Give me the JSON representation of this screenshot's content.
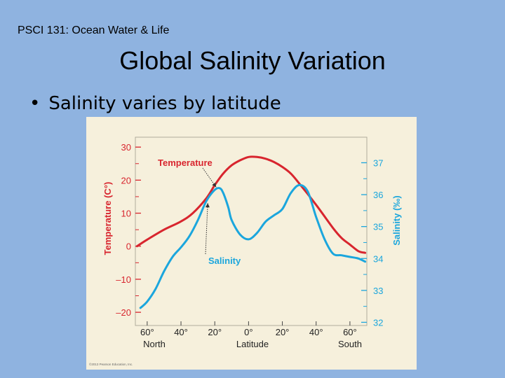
{
  "slide": {
    "course_label": "PSCI 131: Ocean Water & Life",
    "title": "Global Salinity Variation",
    "bullet_symbol": "•",
    "bullet": "Salinity varies by latitude"
  },
  "colors": {
    "slide_background": "#8fb3e0",
    "figure_background": "#f6f0dc",
    "temperature": "#d8252e",
    "salinity": "#1ba6dd",
    "text": "#222222"
  },
  "chart_data": {
    "type": "line",
    "xlabel": "Latitude",
    "x_ticks": [
      "60°",
      "40°",
      "20°",
      "0°",
      "20°",
      "40°",
      "60°"
    ],
    "x_tick_values": [
      -60,
      -40,
      -20,
      0,
      20,
      40,
      60
    ],
    "x_end_labels": {
      "left": "North",
      "right": "South"
    },
    "x_range": [
      -67,
      70
    ],
    "left_axis": {
      "label": "Temperature (C°)",
      "ticks": [
        "30",
        "20",
        "10",
        "0",
        "–10",
        "–20"
      ],
      "tick_values": [
        30,
        20,
        10,
        0,
        -10,
        -20
      ],
      "range": [
        -24,
        33
      ]
    },
    "right_axis": {
      "label": "Salinity (‰)",
      "ticks": [
        "37",
        "36",
        "35",
        "34",
        "33",
        "32"
      ],
      "tick_values": [
        37,
        36,
        35,
        34,
        33,
        32
      ],
      "range": [
        31.9,
        37.8
      ]
    },
    "grid": false,
    "series": [
      {
        "name": "Temperature",
        "axis": "left",
        "x": [
          -66,
          -60,
          -50,
          -40,
          -33,
          -25,
          -20,
          -15,
          -10,
          -5,
          0,
          5,
          10,
          15,
          20,
          25,
          30,
          40,
          50,
          55,
          60,
          65,
          69
        ],
        "values": [
          0,
          2,
          5,
          7.5,
          10,
          14.5,
          18.5,
          22,
          24.5,
          26,
          27,
          27,
          26.5,
          25.5,
          24,
          22,
          19,
          12.5,
          5.5,
          2.5,
          0.5,
          -1.5,
          -2
        ]
      },
      {
        "name": "Salinity",
        "axis": "right",
        "x": [
          -64,
          -60,
          -55,
          -50,
          -45,
          -40,
          -35,
          -30,
          -25,
          -20,
          -17,
          -15,
          -12,
          -10,
          -5,
          0,
          5,
          10,
          15,
          20,
          25,
          30,
          35,
          40,
          45,
          50,
          55,
          60,
          65,
          69
        ],
        "values": [
          32.45,
          32.65,
          33.05,
          33.6,
          34.05,
          34.35,
          34.7,
          35.2,
          35.8,
          36.15,
          36.2,
          36.05,
          35.6,
          35.2,
          34.75,
          34.6,
          34.8,
          35.15,
          35.35,
          35.55,
          36.05,
          36.3,
          36.1,
          35.3,
          34.6,
          34.15,
          34.1,
          34.05,
          34.0,
          33.9
        ]
      }
    ],
    "annotations": [
      {
        "text": "Temperature",
        "target_series": "Temperature"
      },
      {
        "text": "Salinity",
        "target_series": "Salinity"
      }
    ],
    "credit": "©2013 Pearson Education, Inc."
  }
}
